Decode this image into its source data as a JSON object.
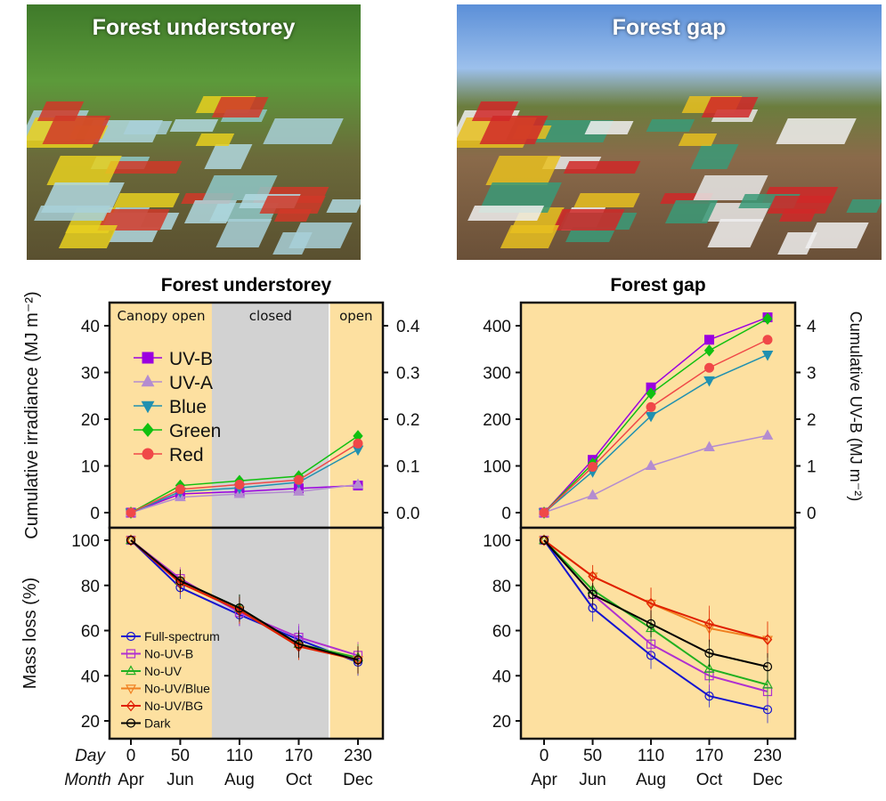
{
  "photos": [
    {
      "title": "Forest understorey"
    },
    {
      "title": "Forest gap"
    }
  ],
  "colors": {
    "background": "#fde0a0",
    "closed": "#d2d2d2",
    "UV-B": "#9b00e0",
    "UV-A": "#b48cd0",
    "Blue": "#2090b0",
    "Green": "#10c010",
    "Red": "#f04848",
    "Full-spectrum": "#1414d0",
    "No-UV-B": "#b030d0",
    "No-UV": "#20b020",
    "No-UV/Blue": "#f08020",
    "No-UV/BG": "#e02000",
    "Dark": "#000000"
  },
  "chart_data": [
    {
      "id": "irr-understorey",
      "type": "line",
      "title": "Forest understorey",
      "ylabel": "Cumulative irradiance (MJ m⁻²)",
      "ylim": [
        0,
        40
      ],
      "yticks": [
        0,
        10,
        20,
        30,
        40
      ],
      "y2ticks": [
        "0.0",
        "0.1",
        "0.2",
        "0.3",
        "0.4"
      ],
      "phases": [
        {
          "label": "Canopy open",
          "from": 0,
          "to": 82,
          "state": "open"
        },
        {
          "label": "closed",
          "from": 82,
          "to": 201,
          "state": "closed"
        },
        {
          "label": "open",
          "from": 201,
          "to": 255,
          "state": "open"
        }
      ],
      "x": [
        0,
        50,
        110,
        170,
        230
      ],
      "series": [
        {
          "name": "UV-B",
          "marker": "square",
          "values": [
            0,
            4,
            4.5,
            5.2,
            5.8
          ]
        },
        {
          "name": "UV-A",
          "marker": "triangle-up",
          "values": [
            0,
            3.3,
            4,
            4.5,
            6
          ]
        },
        {
          "name": "Blue",
          "marker": "triangle-down",
          "values": [
            0,
            4.5,
            5.3,
            6.5,
            13.5
          ]
        },
        {
          "name": "Green",
          "marker": "diamond",
          "values": [
            0,
            5.8,
            6.8,
            7.8,
            16.4
          ]
        },
        {
          "name": "Red",
          "marker": "circle",
          "values": [
            0,
            5,
            6,
            7,
            14.8
          ]
        }
      ]
    },
    {
      "id": "irr-gap",
      "type": "line",
      "title": "Forest gap",
      "y2label": "Cumulative  UV-B (MJ m⁻²)",
      "ylim": [
        0,
        400
      ],
      "yticks": [
        0,
        100,
        200,
        300,
        400
      ],
      "y2ticks": [
        "0",
        "1",
        "2",
        "3",
        "4"
      ],
      "phases": [],
      "x": [
        0,
        50,
        110,
        170,
        230
      ],
      "series": [
        {
          "name": "UV-B",
          "marker": "square",
          "values": [
            0,
            113,
            268,
            370,
            418
          ]
        },
        {
          "name": "UV-A",
          "marker": "triangle-up",
          "values": [
            0,
            37,
            100,
            140,
            165
          ]
        },
        {
          "name": "Blue",
          "marker": "triangle-down",
          "values": [
            0,
            88,
            207,
            283,
            338
          ]
        },
        {
          "name": "Green",
          "marker": "diamond",
          "values": [
            0,
            105,
            255,
            347,
            415
          ]
        },
        {
          "name": "Red",
          "marker": "circle",
          "values": [
            0,
            98,
            226,
            310,
            370
          ]
        }
      ]
    },
    {
      "id": "mass-understorey",
      "type": "line",
      "ylabel": "Mass loss (%)",
      "ylim": [
        15,
        105
      ],
      "yticks": [
        20,
        40,
        60,
        80,
        100
      ],
      "phases": [
        {
          "from": 0,
          "to": 82,
          "state": "open"
        },
        {
          "from": 82,
          "to": 201,
          "state": "closed"
        },
        {
          "from": 201,
          "to": 255,
          "state": "open"
        }
      ],
      "x": [
        0,
        50,
        110,
        170,
        230
      ],
      "xticks": [
        "0",
        "50",
        "110",
        "170",
        "230"
      ],
      "months": [
        "Apr",
        "Jun",
        "Aug",
        "Oct",
        "Dec"
      ],
      "xlabel_day": "Day",
      "xlabel_month": "Month",
      "series": [
        {
          "name": "Full-spectrum",
          "marker": "circle",
          "values": [
            100,
            79,
            67,
            56,
            46
          ],
          "err": [
            0,
            5,
            5,
            6,
            6
          ]
        },
        {
          "name": "No-UV-B",
          "marker": "square",
          "values": [
            100,
            83,
            68,
            57,
            49
          ],
          "err": [
            0,
            5,
            6,
            6,
            6
          ]
        },
        {
          "name": "No-UV",
          "marker": "triangle-up",
          "values": [
            100,
            82,
            70,
            54,
            48
          ],
          "err": [
            0,
            5,
            6,
            6,
            6
          ]
        },
        {
          "name": "No-UV/Blue",
          "marker": "triangle-down",
          "values": [
            100,
            82,
            69,
            53,
            47
          ],
          "err": [
            0,
            5,
            6,
            6,
            6
          ]
        },
        {
          "name": "No-UV/BG",
          "marker": "diamond",
          "values": [
            100,
            81,
            69,
            53,
            47
          ],
          "err": [
            0,
            5,
            6,
            6,
            6
          ]
        },
        {
          "name": "Dark",
          "marker": "circle",
          "values": [
            100,
            82,
            70,
            54,
            47
          ],
          "err": [
            0,
            5,
            6,
            6,
            6
          ]
        }
      ]
    },
    {
      "id": "mass-gap",
      "type": "line",
      "ylim": [
        15,
        105
      ],
      "yticks": [
        20,
        40,
        60,
        80,
        100
      ],
      "phases": [],
      "x": [
        0,
        50,
        110,
        170,
        230
      ],
      "xticks": [
        "0",
        "50",
        "110",
        "170",
        "230"
      ],
      "months": [
        "Apr",
        "Jun",
        "Aug",
        "Oct",
        "Dec"
      ],
      "series": [
        {
          "name": "Full-spectrum",
          "marker": "circle",
          "values": [
            100,
            70,
            49,
            31,
            25
          ],
          "err": [
            0,
            6,
            6,
            5,
            6
          ]
        },
        {
          "name": "No-UV-B",
          "marker": "square",
          "values": [
            100,
            76,
            54,
            40,
            33
          ],
          "err": [
            0,
            5,
            6,
            6,
            6
          ]
        },
        {
          "name": "No-UV",
          "marker": "triangle-up",
          "values": [
            100,
            78,
            61,
            43,
            36
          ],
          "err": [
            0,
            5,
            6,
            6,
            6
          ]
        },
        {
          "name": "No-UV/Blue",
          "marker": "triangle-down",
          "values": [
            100,
            84,
            72,
            61,
            56
          ],
          "err": [
            0,
            5,
            7,
            8,
            8
          ]
        },
        {
          "name": "No-UV/BG",
          "marker": "diamond",
          "values": [
            100,
            84,
            72,
            63,
            56
          ],
          "err": [
            0,
            5,
            7,
            8,
            8
          ]
        },
        {
          "name": "Dark",
          "marker": "circle",
          "values": [
            100,
            76,
            63,
            50,
            44
          ],
          "err": [
            0,
            5,
            6,
            6,
            6
          ]
        }
      ]
    }
  ]
}
